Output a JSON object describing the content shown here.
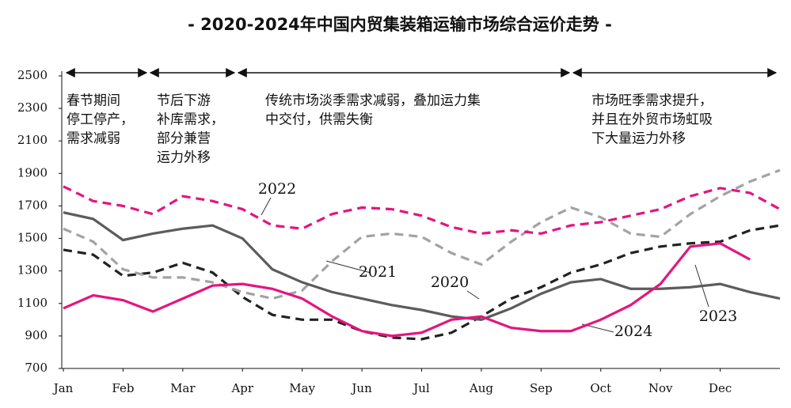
{
  "chart_data": {
    "type": "line",
    "title": "- 2020-2024年中国内贸集装箱运输市场综合运价走势 -",
    "x": [
      0,
      0.5,
      1,
      1.5,
      2,
      2.5,
      3,
      3.5,
      4,
      4.5,
      5,
      5.5,
      6,
      6.5,
      7,
      7.5,
      8,
      8.5,
      9,
      9.5,
      10,
      10.5,
      11,
      11.5,
      12
    ],
    "xlim": [
      0,
      12
    ],
    "xticks": [
      {
        "value": 0,
        "label": "Jan"
      },
      {
        "value": 1,
        "label": "Feb"
      },
      {
        "value": 2,
        "label": "Mar"
      },
      {
        "value": 3,
        "label": "Apr"
      },
      {
        "value": 4,
        "label": "May"
      },
      {
        "value": 5,
        "label": "Jun"
      },
      {
        "value": 6,
        "label": "Jul"
      },
      {
        "value": 7,
        "label": "Aug"
      },
      {
        "value": 8,
        "label": "Sep"
      },
      {
        "value": 9,
        "label": "Oct"
      },
      {
        "value": 10,
        "label": "Nov"
      },
      {
        "value": 11,
        "label": "Dec"
      }
    ],
    "ylim": [
      700,
      2500
    ],
    "yticks": [
      700,
      900,
      1100,
      1300,
      1500,
      1700,
      1900,
      2100,
      2300,
      2500
    ],
    "grid": false,
    "series": [
      {
        "name": "2020",
        "color": "#222222",
        "style": "dashed",
        "values": [
          1430,
          1400,
          1270,
          1290,
          1350,
          1290,
          1140,
          1030,
          1000,
          1000,
          930,
          890,
          880,
          920,
          1020,
          1130,
          1200,
          1290,
          1340,
          1410,
          1450,
          1470,
          1480,
          1550,
          1580
        ]
      },
      {
        "name": "2021",
        "color": "#a3a3a3",
        "style": "dashed",
        "values": [
          1560,
          1480,
          1310,
          1260,
          1260,
          1230,
          1170,
          1130,
          1180,
          1360,
          1510,
          1530,
          1510,
          1410,
          1340,
          1480,
          1600,
          1690,
          1630,
          1530,
          1510,
          1650,
          1760,
          1850,
          1920
        ]
      },
      {
        "name": "2022",
        "color": "#5c5c5c",
        "style": "solid",
        "values": [
          1660,
          1620,
          1490,
          1530,
          1560,
          1580,
          1500,
          1310,
          1230,
          1170,
          1130,
          1090,
          1060,
          1020,
          1000,
          1070,
          1160,
          1230,
          1250,
          1190,
          1190,
          1200,
          1220,
          1170,
          1130
        ]
      },
      {
        "name": "2023",
        "color": "#e4157f",
        "style": "dashed",
        "values": [
          1820,
          1730,
          1700,
          1650,
          1760,
          1730,
          1680,
          1580,
          1560,
          1650,
          1690,
          1680,
          1640,
          1570,
          1530,
          1550,
          1530,
          1580,
          1600,
          1640,
          1680,
          1760,
          1810,
          1780,
          1680
        ]
      },
      {
        "name": "2024",
        "color": "#e4157f",
        "style": "solid",
        "values": [
          1070,
          1150,
          1120,
          1050,
          1130,
          1210,
          1220,
          1190,
          1130,
          1020,
          930,
          900,
          920,
          1000,
          1020,
          950,
          930,
          930,
          1000,
          1090,
          1220,
          1450,
          1470,
          1370,
          null
        ]
      }
    ],
    "annotations": [
      [
        "春节期间",
        "停工停产，",
        "需求减弱"
      ],
      [
        "节后下游",
        "补库需求，",
        "部分兼营",
        "运力外移"
      ],
      [
        "传统市场淡季需求减弱，叠加运力集",
        "中交付，供需失衡"
      ],
      [
        "市场旺季需求提升，",
        "并且在外贸市场虹吸",
        "下大量运力外移"
      ]
    ]
  }
}
